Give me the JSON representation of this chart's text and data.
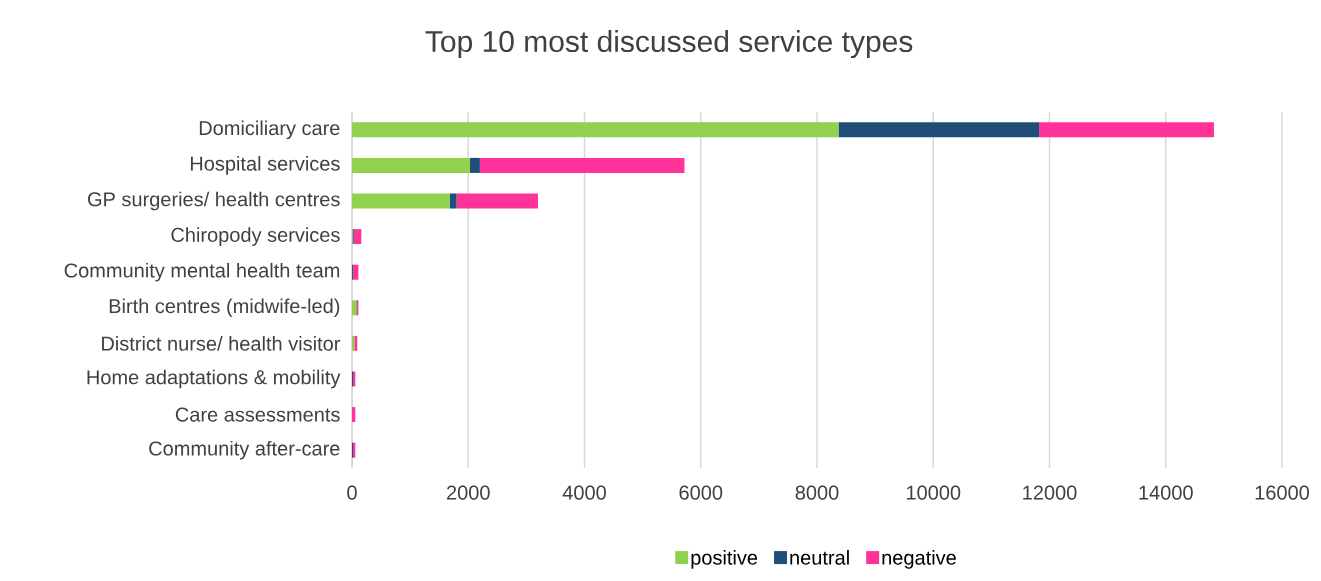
{
  "chart_data": {
    "type": "bar",
    "orientation": "horizontal",
    "stacked": true,
    "title": "Top 10 most discussed service types",
    "categories": [
      "Domiciliary care",
      "Hospital services",
      "GP surgeries/ health centres",
      "Chiropody services",
      "Community mental health team",
      "Birth centres (midwife-led)",
      "District nurse/ health visitor",
      "Home adaptations & mobility",
      "Care assessments",
      "Community after-care"
    ],
    "series": [
      {
        "name": "positive",
        "color": "#92d050",
        "values": [
          8370,
          2030,
          1680,
          10,
          0,
          75,
          40,
          0,
          0,
          0
        ]
      },
      {
        "name": "neutral",
        "color": "#1f4e79",
        "values": [
          3450,
          170,
          120,
          20,
          15,
          10,
          0,
          17,
          0,
          17
        ]
      },
      {
        "name": "negative",
        "color": "#ff3399",
        "values": [
          3010,
          3520,
          1400,
          130,
          95,
          25,
          50,
          40,
          57,
          40
        ]
      }
    ],
    "xlim": [
      0,
      16000
    ],
    "xticks": [
      0,
      2000,
      4000,
      6000,
      8000,
      10000,
      12000,
      14000,
      16000
    ],
    "grid": "x",
    "legend": "bottom"
  }
}
